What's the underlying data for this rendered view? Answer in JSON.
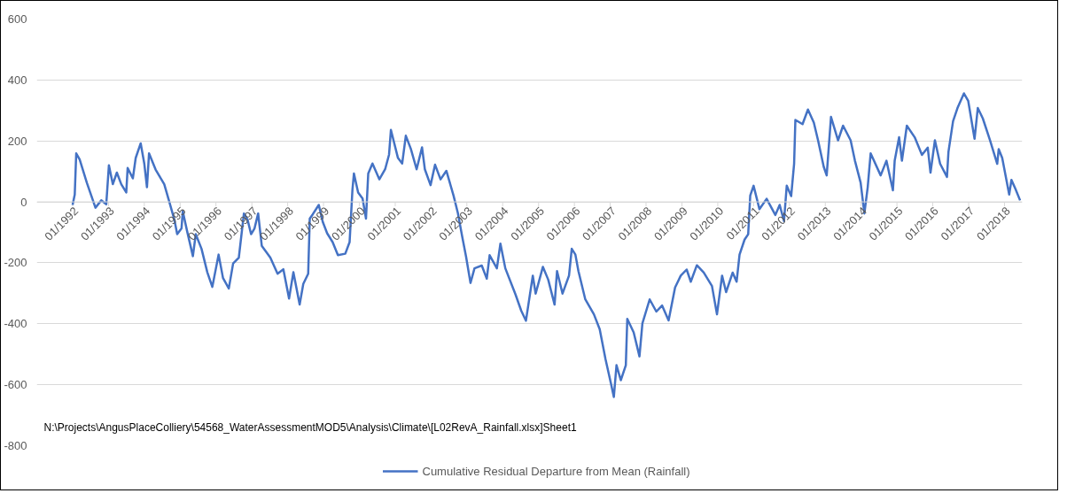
{
  "chart_data": {
    "type": "line",
    "x": [
      "1992-01-01",
      "1992-01-23",
      "1992-02-07",
      "1992-03-13",
      "1992-05-25",
      "1992-08-21",
      "1992-10-19",
      "1992-12-09",
      "1993-01-05",
      "1993-02-14",
      "1993-03-27",
      "1993-05-11",
      "1993-07-01",
      "1993-07-15",
      "1993-09-06",
      "1993-10-05",
      "1993-11-25",
      "1994-01-01",
      "1994-01-28",
      "1994-02-18",
      "1994-04-26",
      "1994-07-23",
      "1994-09-13",
      "1994-11-03",
      "1994-12-02",
      "1995-01-15",
      "1995-01-28",
      "1995-03-13",
      "1995-05-11",
      "1995-06-09",
      "1995-08-07",
      "1995-10-05",
      "1995-11-25",
      "1996-01-28",
      "1996-03-13",
      "1996-05-11",
      "1996-06-24",
      "1996-08-21",
      "1996-10-12",
      "1996-11-18",
      "1996-12-24",
      "1997-01-28",
      "1997-03-06",
      "1997-04-12",
      "1997-07-08",
      "1997-09-20",
      "1997-11-18",
      "1998-01-15",
      "1998-02-28",
      "1998-05-03",
      "1998-06-09",
      "1998-07-29",
      "1998-08-14",
      "1998-09-13",
      "1998-11-14",
      "1998-12-24",
      "1999-02-07",
      "1999-04-04",
      "1999-05-28",
      "1999-08-11",
      "1999-09-24",
      "1999-10-23",
      "1999-11-07",
      "1999-12-20",
      "2000-02-03",
      "2000-03-09",
      "2000-04-01",
      "2000-05-14",
      "2000-07-23",
      "2000-09-20",
      "2000-10-30",
      "2000-11-18",
      "2001-01-28",
      "2001-03-13",
      "2001-04-19",
      "2001-06-09",
      "2001-08-07",
      "2001-10-01",
      "2001-10-30",
      "2001-12-27",
      "2002-02-11",
      "2002-04-08",
      "2002-06-06",
      "2002-08-18",
      "2002-10-01",
      "2002-11-14",
      "2002-12-24",
      "2003-02-07",
      "2003-03-20",
      "2003-06-02",
      "2003-07-23",
      "2003-08-21",
      "2003-11-03",
      "2003-12-09",
      "2004-01-28",
      "2004-05-11",
      "2004-07-08",
      "2004-08-25",
      "2004-11-03",
      "2004-12-02",
      "2005-02-14",
      "2005-04-09",
      "2005-06-13",
      "2005-07-08",
      "2005-09-02",
      "2005-11-07",
      "2005-12-05",
      "2006-01-11",
      "2006-02-11",
      "2006-04-22",
      "2006-07-19",
      "2006-09-16",
      "2006-11-14",
      "2007-01-08",
      "2007-02-07",
      "2007-03-06",
      "2007-04-19",
      "2007-06-09",
      "2007-06-24",
      "2007-08-28",
      "2007-10-26",
      "2007-11-25",
      "2008-02-07",
      "2008-04-15",
      "2008-06-13",
      "2008-08-18",
      "2008-10-23",
      "2008-12-20",
      "2009-02-18",
      "2009-04-01",
      "2009-06-02",
      "2009-08-11",
      "2009-11-03",
      "2009-12-24",
      "2010-02-14",
      "2010-03-27",
      "2010-06-02",
      "2010-07-12",
      "2010-08-11",
      "2010-10-01",
      "2010-11-07",
      "2010-11-28",
      "2011-01-01",
      "2011-03-02",
      "2011-05-14",
      "2011-08-11",
      "2011-09-24",
      "2011-11-07",
      "2011-12-05",
      "2012-01-19",
      "2012-02-18",
      "2012-03-02",
      "2012-05-14",
      "2012-07-08",
      "2012-09-06",
      "2012-10-19",
      "2012-12-16",
      "2013-01-15",
      "2013-02-28",
      "2013-05-11",
      "2013-07-01",
      "2013-09-16",
      "2013-10-30",
      "2013-12-27",
      "2014-02-03",
      "2014-03-09",
      "2014-04-08",
      "2014-07-19",
      "2014-09-16",
      "2014-11-21",
      "2014-12-09",
      "2015-01-23",
      "2015-02-21",
      "2015-04-12",
      "2015-07-01",
      "2015-09-13",
      "2015-11-11",
      "2015-12-09",
      "2016-01-23",
      "2016-03-16",
      "2016-05-25",
      "2016-06-09",
      "2016-07-26",
      "2016-09-09",
      "2016-11-14",
      "2016-12-27",
      "2017-03-02",
      "2017-04-04",
      "2017-05-25",
      "2017-08-07",
      "2017-10-19",
      "2017-11-03",
      "2017-12-09",
      "2018-02-18",
      "2018-03-13",
      "2018-04-22",
      "2018-06-09"
    ],
    "series": [
      {
        "name": "Cumulative Residual Departure from Mean (Rainfall)",
        "color": "#4472c4",
        "values": [
          -10,
          24,
          159,
          139,
          63,
          -19,
          5,
          -8,
          120,
          58,
          96,
          58,
          31,
          111,
          77,
          144,
          192,
          125,
          48,
          159,
          106,
          58,
          0,
          -58,
          -106,
          -87,
          -31,
          -96,
          -178,
          -106,
          -154,
          -231,
          -279,
          -173,
          -250,
          -284,
          -202,
          -183,
          -38,
          -58,
          -106,
          -87,
          -38,
          -144,
          -183,
          -236,
          -221,
          -317,
          -231,
          -337,
          -269,
          -236,
          -55,
          -41,
          -10,
          -65,
          -103,
          -132,
          -175,
          -170,
          -132,
          40,
          93,
          31,
          11,
          -55,
          93,
          126,
          74,
          107,
          155,
          236,
          145,
          126,
          217,
          174,
          107,
          179,
          107,
          55,
          122,
          74,
          102,
          21,
          -36,
          -113,
          -180,
          -266,
          -218,
          -209,
          -252,
          -175,
          -218,
          -137,
          -218,
          -304,
          -357,
          -390,
          -242,
          -301,
          -213,
          -255,
          -337,
          -227,
          -301,
          -242,
          -154,
          -173,
          -227,
          -320,
          -369,
          -418,
          -516,
          -595,
          -640,
          -536,
          -585,
          -536,
          -384,
          -428,
          -507,
          -399,
          -320,
          -360,
          -340,
          -389,
          -281,
          -242,
          -222,
          -262,
          -208,
          -232,
          -276,
          -369,
          -242,
          -296,
          -232,
          -262,
          -173,
          -124,
          -106,
          21,
          53,
          -24,
          10,
          -43,
          -10,
          -63,
          53,
          19,
          125,
          269,
          255,
          303,
          260,
          202,
          115,
          87,
          279,
          202,
          250,
          202,
          135,
          63,
          -38,
          48,
          159,
          87,
          135,
          38,
          135,
          212,
          135,
          250,
          212,
          154,
          178,
          96,
          202,
          125,
          82,
          164,
          265,
          308,
          356,
          332,
          207,
          308,
          274,
          202,
          125,
          173,
          144,
          24,
          72,
          43,
          5
        ]
      }
    ],
    "xlim": [
      "1991-01-01",
      "2018-07-01"
    ],
    "xticks": [
      {
        "value": "1992-01-01",
        "label": "01/1992"
      },
      {
        "value": "1993-01-01",
        "label": "01/1993"
      },
      {
        "value": "1994-01-01",
        "label": "01/1994"
      },
      {
        "value": "1995-01-01",
        "label": "01/1995"
      },
      {
        "value": "1996-01-01",
        "label": "01/1996"
      },
      {
        "value": "1997-01-01",
        "label": "01/1997"
      },
      {
        "value": "1998-01-01",
        "label": "01/1998"
      },
      {
        "value": "1999-01-01",
        "label": "01/1999"
      },
      {
        "value": "2000-01-01",
        "label": "01/2000"
      },
      {
        "value": "2001-01-01",
        "label": "01/2001"
      },
      {
        "value": "2002-01-01",
        "label": "01/2002"
      },
      {
        "value": "2003-01-01",
        "label": "01/2003"
      },
      {
        "value": "2004-01-01",
        "label": "01/2004"
      },
      {
        "value": "2005-01-01",
        "label": "01/2005"
      },
      {
        "value": "2006-01-01",
        "label": "01/2006"
      },
      {
        "value": "2007-01-01",
        "label": "01/2007"
      },
      {
        "value": "2008-01-01",
        "label": "01/2008"
      },
      {
        "value": "2009-01-01",
        "label": "01/2009"
      },
      {
        "value": "2010-01-01",
        "label": "01/2010"
      },
      {
        "value": "2011-01-01",
        "label": "01/2011"
      },
      {
        "value": "2012-01-01",
        "label": "01/2012"
      },
      {
        "value": "2013-01-01",
        "label": "01/2013"
      },
      {
        "value": "2014-01-01",
        "label": "01/2014"
      },
      {
        "value": "2015-01-01",
        "label": "01/2015"
      },
      {
        "value": "2016-01-01",
        "label": "01/2016"
      },
      {
        "value": "2017-01-01",
        "label": "01/2017"
      },
      {
        "value": "2018-01-01",
        "label": "01/2018"
      }
    ],
    "ylim": [
      -800,
      600
    ],
    "yticks": [
      -800,
      -600,
      -400,
      -200,
      0,
      200,
      400,
      600
    ],
    "grid": "y",
    "legend": "bottom",
    "line_style": "solid",
    "annotations": [
      "N:\\Projects\\AngusPlaceColliery\\54568_WaterAssessmentMOD5\\Analysis\\Climate\\[L02RevA_Rainfall.xlsx]Sheet1"
    ]
  }
}
